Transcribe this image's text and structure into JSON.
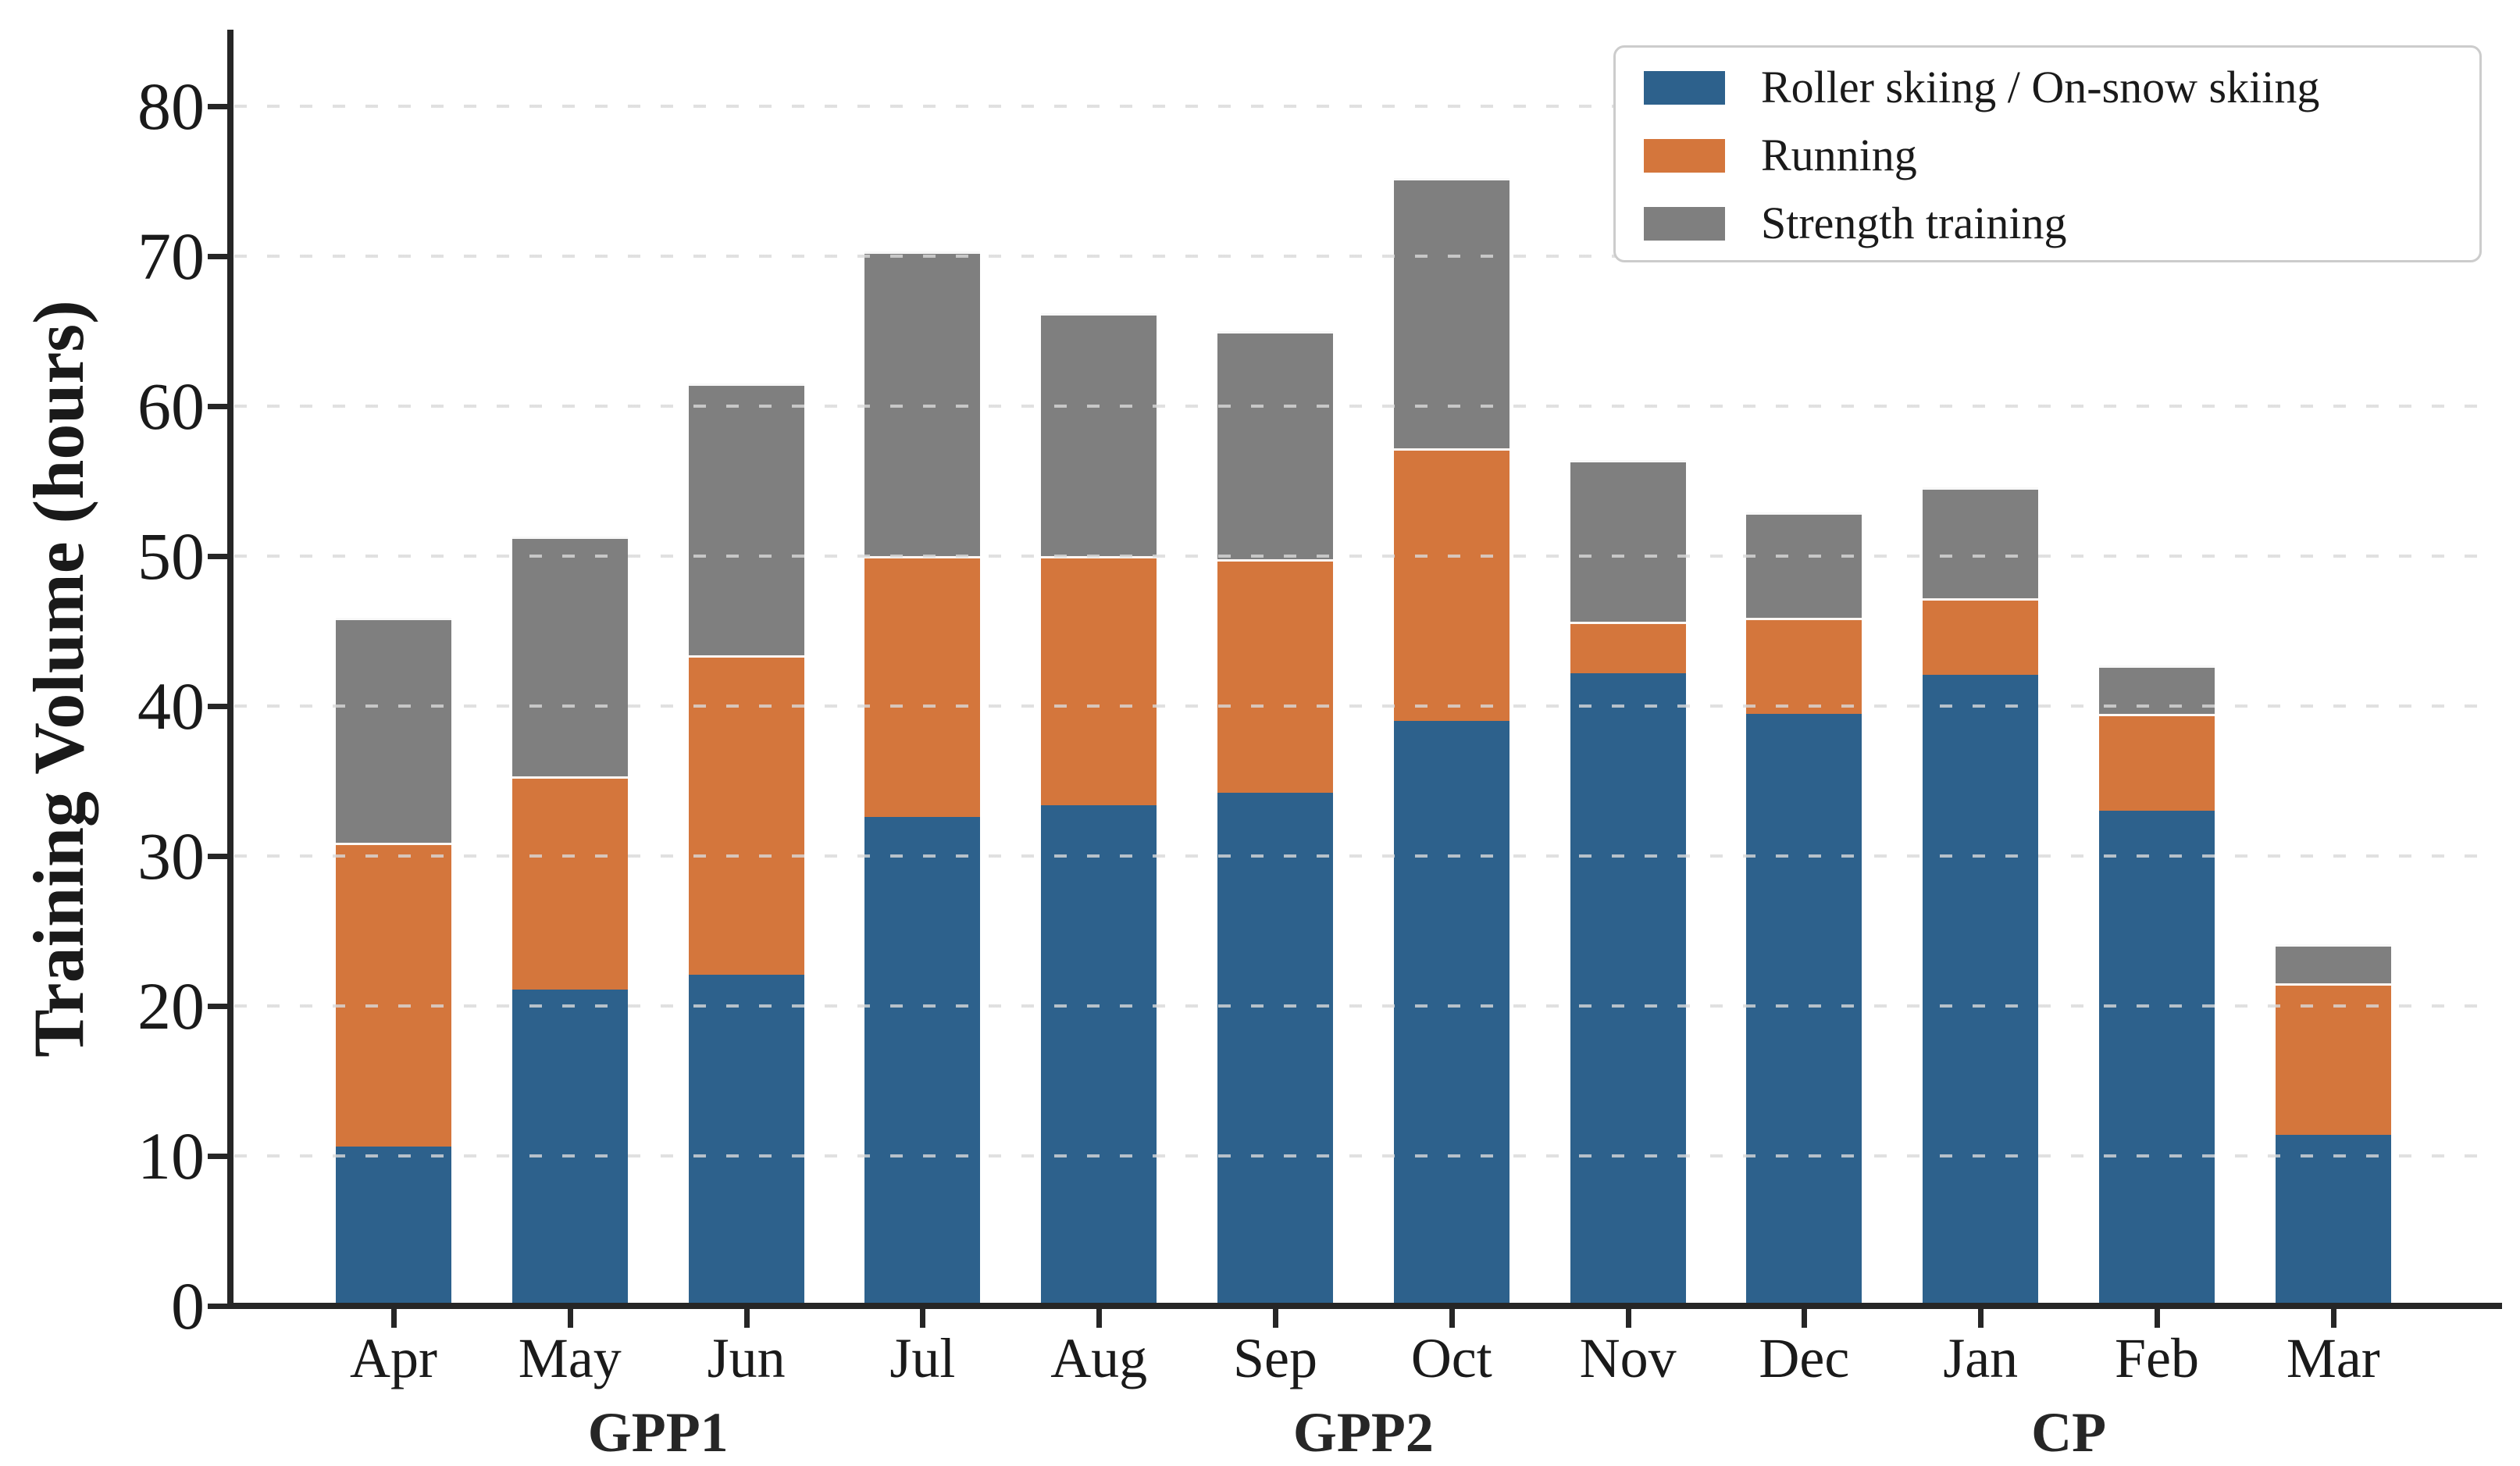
{
  "figure": {
    "background": "#ffffff",
    "text_color": "#1a1a1a",
    "spine_color": "#262626",
    "gridline_color": "#d9d9d9"
  },
  "chart_data": {
    "type": "bar",
    "stacked": true,
    "title": "",
    "xlabel": "",
    "ylabel": "Training Volume (hours)",
    "categories": [
      "Apr",
      "May",
      "Jun",
      "Jul",
      "Aug",
      "Sep",
      "Oct",
      "Nov",
      "Dec",
      "Jan",
      "Feb",
      "Mar"
    ],
    "series": [
      {
        "name": "Roller skiing / On-snow skiing",
        "color": "#2d618c",
        "values": [
          10.6,
          21.1,
          22.1,
          32.6,
          33.4,
          34.2,
          39.0,
          42.2,
          39.5,
          42.1,
          33.0,
          11.4
        ]
      },
      {
        "name": "Running",
        "color": "#d4763c",
        "values": [
          20.3,
          14.2,
          21.3,
          17.4,
          16.6,
          15.6,
          18.2,
          3.4,
          6.4,
          5.1,
          6.5,
          10.1
        ]
      },
      {
        "name": "Strength training",
        "color": "#7f7f7f",
        "values": [
          15.0,
          16.0,
          18.1,
          20.3,
          16.2,
          15.2,
          18.0,
          10.8,
          7.0,
          7.4,
          3.2,
          2.6
        ]
      }
    ],
    "stack_totals": [
      45.9,
      51.3,
      61.5,
      70.3,
      66.2,
      65.0,
      75.2,
      56.4,
      52.9,
      54.6,
      42.7,
      24.1
    ],
    "ylim": [
      0,
      85
    ],
    "yticks": [
      0,
      10,
      20,
      30,
      40,
      50,
      60,
      70,
      80
    ],
    "grid": {
      "axis": "y",
      "style": "dashed",
      "color": "#d9d9d9"
    },
    "legend_position": "upper right",
    "period_labels": [
      {
        "label": "GPP1",
        "start": "Apr",
        "end": "Jul"
      },
      {
        "label": "GPP2",
        "start": "Aug",
        "end": "Nov"
      },
      {
        "label": "CP",
        "start": "Dec",
        "end": "Mar"
      }
    ]
  }
}
